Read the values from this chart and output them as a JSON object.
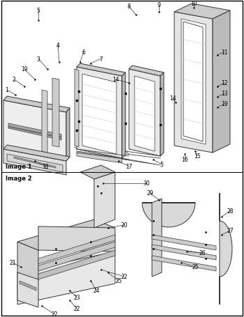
{
  "background_color": "#ffffff",
  "border_color": "#000000",
  "image1_label": "Image 1",
  "image2_label": "Image 2",
  "fig_width": 3.5,
  "fig_height": 4.56,
  "dpi": 100,
  "gray_light": "#d8d8d8",
  "gray_mid": "#b8b8b8",
  "gray_dark": "#888888",
  "line_color": "#333333",
  "line_width": 0.7
}
